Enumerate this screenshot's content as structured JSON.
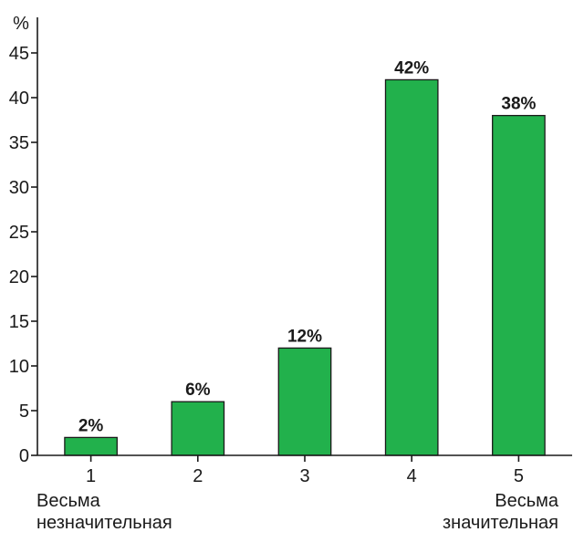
{
  "chart_data": {
    "type": "bar",
    "categories": [
      "1",
      "2",
      "3",
      "4",
      "5"
    ],
    "values": [
      2,
      6,
      12,
      42,
      38
    ],
    "data_labels": [
      "2%",
      "6%",
      "12%",
      "42%",
      "38%"
    ],
    "y_unit": "%",
    "ylim": [
      0,
      45
    ],
    "yticks": [
      0,
      5,
      10,
      15,
      20,
      25,
      30,
      35,
      40,
      45
    ],
    "grid": false,
    "bar_color": "#22b14c",
    "scale_notes": {
      "low_line1": "Весьма",
      "low_line2": "незначительная",
      "high_line1": "Весьма",
      "high_line2": "значительная"
    }
  }
}
